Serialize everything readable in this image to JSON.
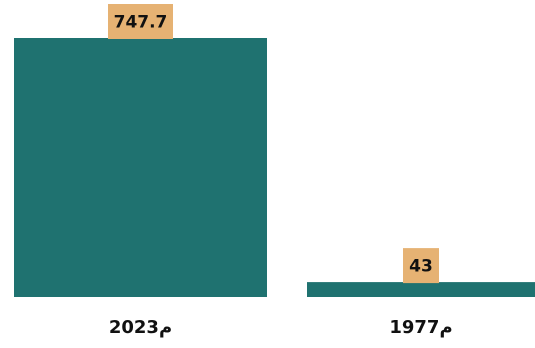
{
  "chart_data": {
    "type": "bar",
    "categories": [
      "2023م",
      "1977م"
    ],
    "values": [
      747.7,
      43
    ],
    "data_labels": [
      "747.7",
      "43"
    ],
    "title": "",
    "xlabel": "",
    "ylabel": "",
    "ylim": [
      0,
      747.7
    ],
    "grid": false,
    "bar_color": "#1f7270",
    "label_color": "#e6b273"
  }
}
